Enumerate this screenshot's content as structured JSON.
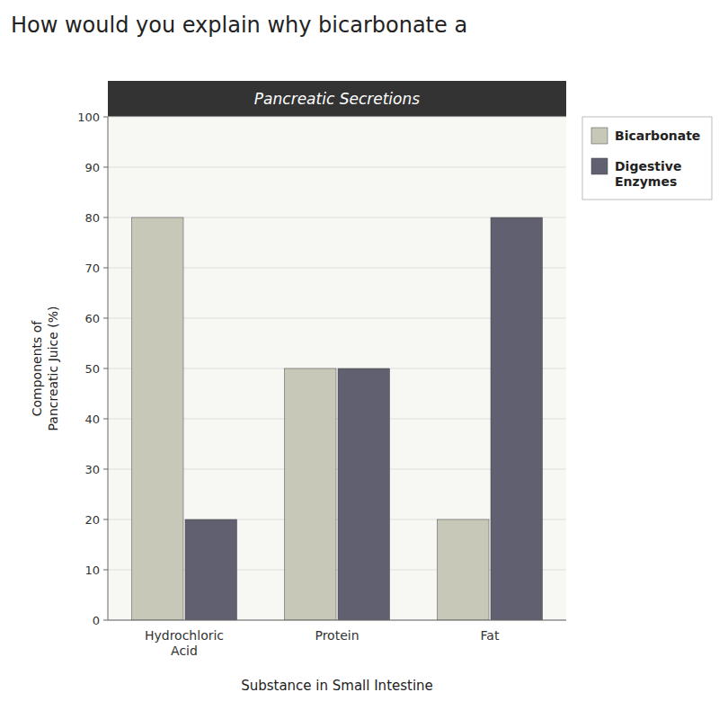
{
  "chart_data": {
    "type": "bar",
    "title": "Pancreatic Secretions",
    "annotations": [
      "How would you explain why bicarbonate a"
    ],
    "xlabel": "Substance in Small Intestine",
    "ylabel": "Components of\nPancreatic Juice (%)",
    "categories": [
      "Hydrochloric\nAcid",
      "Protein",
      "Fat"
    ],
    "series": [
      {
        "name": "Bicarbonate",
        "color": "#c8c8b8",
        "values": [
          80,
          50,
          20
        ]
      },
      {
        "name": "Digestive\nEnzymes",
        "color": "#606070",
        "values": [
          20,
          50,
          80
        ]
      }
    ],
    "ylim": [
      0,
      100
    ],
    "yticks": [
      0,
      10,
      20,
      30,
      40,
      50,
      60,
      70,
      80,
      90,
      100
    ],
    "grid": true,
    "legend": "upper right"
  }
}
